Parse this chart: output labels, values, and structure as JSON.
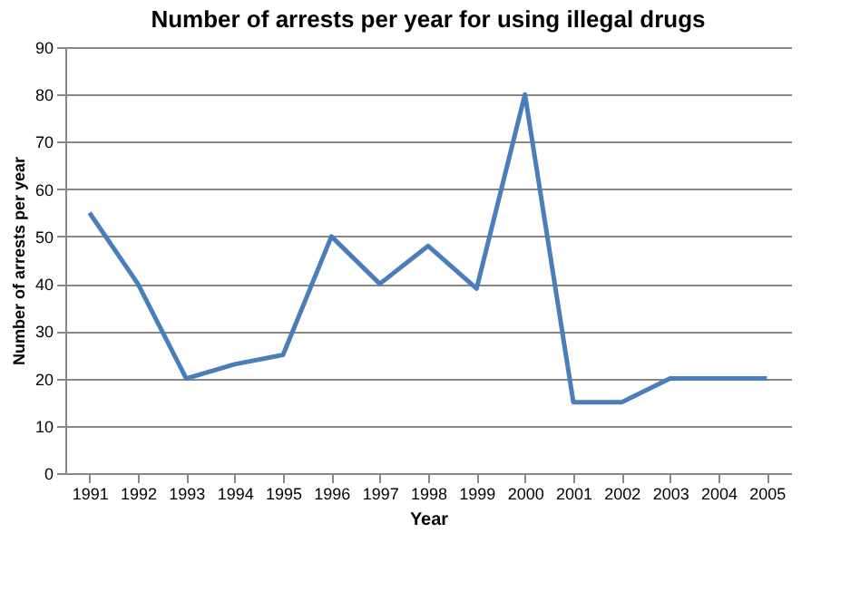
{
  "chart_data": {
    "type": "line",
    "title": "Number of arrests per year for using illegal drugs",
    "xlabel": "Year",
    "ylabel": "Number of arrests per year",
    "categories": [
      "1991",
      "1992",
      "1993",
      "1994",
      "1995",
      "1996",
      "1997",
      "1998",
      "1999",
      "2000",
      "2001",
      "2002",
      "2003",
      "2004",
      "2005"
    ],
    "series": [
      {
        "color": "#4a7ebb",
        "values": [
          55,
          40,
          20,
          23,
          25,
          50,
          40,
          48,
          39,
          80,
          15,
          15,
          20,
          20,
          20
        ]
      }
    ],
    "ylim": [
      0,
      90
    ],
    "yticks": [
      0,
      10,
      20,
      30,
      40,
      50,
      60,
      70,
      80,
      90
    ],
    "grid": "y",
    "marker": "none",
    "line_style": "solid"
  }
}
